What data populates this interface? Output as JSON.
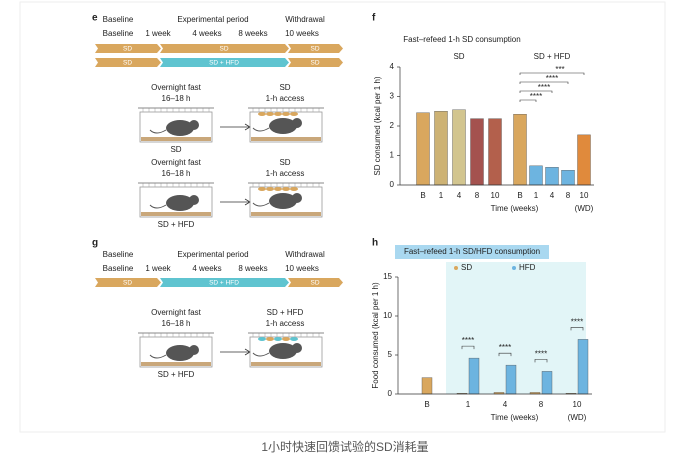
{
  "caption": "1小时快速回馈试验的SD消耗量",
  "panel_e": {
    "label": "e",
    "timeline_header": [
      "Baseline",
      "Experimental period",
      "Withdrawal"
    ],
    "timeline_weeks": [
      "Baseline",
      "1 week",
      "4 weeks",
      "8 weeks",
      "10 weeks"
    ],
    "band_1": [
      "SD",
      "SD",
      "SD"
    ],
    "band_2": [
      "SD",
      "SD + HFD",
      "SD"
    ],
    "condition_1": {
      "fast": "Overnight fast",
      "duration": "16–18 h",
      "food": "SD",
      "access": "1-h access",
      "group": "SD"
    },
    "condition_2": {
      "fast": "Overnight fast",
      "duration": "16–18 h",
      "food": "SD",
      "access": "1-h access",
      "group": "SD + HFD"
    }
  },
  "panel_g": {
    "label": "g",
    "timeline_header": [
      "Baseline",
      "Experimental period",
      "Withdrawal"
    ],
    "timeline_weeks": [
      "Baseline",
      "1 week",
      "4 weeks",
      "8 weeks",
      "10 weeks"
    ],
    "band_1": [
      "SD",
      "SD + HFD",
      "SD"
    ],
    "condition_1": {
      "fast": "Overnight fast",
      "duration": "16–18 h",
      "food": "SD + HFD",
      "access": "1-h access",
      "group": "SD + HFD"
    }
  },
  "chart_data": [
    {
      "type": "bar",
      "panel": "f",
      "title": "Fast–refeed 1-h SD consumption",
      "group_labels": [
        "SD",
        "SD + HFD"
      ],
      "categories": [
        "B",
        "1",
        "4",
        "8",
        "10",
        "B",
        "1",
        "4",
        "8",
        "10"
      ],
      "values": [
        2.45,
        2.5,
        2.55,
        2.25,
        2.25,
        2.4,
        0.65,
        0.6,
        0.5,
        1.7
      ],
      "colors": [
        "#d9a75e",
        "#cdb274",
        "#d2c58f",
        "#a4524f",
        "#b3604c",
        "#d9a75e",
        "#6db4e0",
        "#6db4e0",
        "#6db4e0",
        "#e08a3c"
      ],
      "annotations": [
        "***",
        "****",
        "****",
        "****"
      ],
      "x_label": "Time (weeks)",
      "x_note": "(WD)",
      "y_label": "SD consumed (kcal per 1 h)",
      "ylim": [
        0,
        4
      ],
      "yticks": [
        0,
        1,
        2,
        3,
        4
      ]
    },
    {
      "type": "grouped_bar",
      "panel": "h",
      "title": "Fast–refeed 1-h SD/HFD consumption",
      "categories": [
        "B",
        "1",
        "4",
        "8",
        "10"
      ],
      "series": [
        {
          "name": "SD",
          "color": "#d9a75e",
          "values": [
            2.1,
            0.1,
            0.2,
            0.2,
            0.1
          ]
        },
        {
          "name": "HFD",
          "color": "#6db4e0",
          "values": [
            null,
            4.6,
            3.7,
            2.9,
            7.0
          ]
        }
      ],
      "annotations": [
        "****",
        "****",
        "****",
        "****"
      ],
      "x_label": "Time (weeks)",
      "x_note": "(WD)",
      "y_label": "Food consumed (kcal per 1 h)",
      "ylim": [
        0,
        15
      ],
      "yticks": [
        0,
        5,
        10,
        15
      ]
    }
  ]
}
